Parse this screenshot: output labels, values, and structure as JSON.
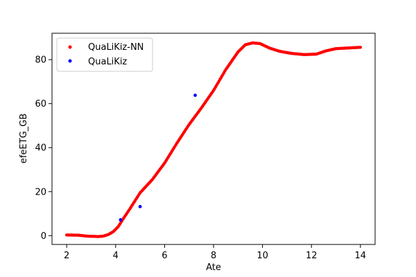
{
  "chart_data": {
    "type": "scatter",
    "title": "",
    "xlabel": "Ate",
    "ylabel": "efeETG_GB",
    "xlim": [
      1.4,
      14.6
    ],
    "ylim": [
      -4.0,
      92.0
    ],
    "xticks": [
      2,
      4,
      6,
      8,
      10,
      12,
      14
    ],
    "yticks": [
      0,
      20,
      40,
      60,
      80
    ],
    "grid": false,
    "legend": "top-left",
    "series": [
      {
        "name": "QuaLiKiz-NN",
        "color": "#ff0000",
        "marker": "dense-dots",
        "points": [
          [
            2.0,
            0.3
          ],
          [
            2.5,
            0.2
          ],
          [
            2.8,
            -0.2
          ],
          [
            3.0,
            -0.3
          ],
          [
            3.3,
            -0.4
          ],
          [
            3.5,
            -0.2
          ],
          [
            3.7,
            0.5
          ],
          [
            3.9,
            1.8
          ],
          [
            4.1,
            4.0
          ],
          [
            4.3,
            7.5
          ],
          [
            4.6,
            12.5
          ],
          [
            5.0,
            19.5
          ],
          [
            5.5,
            25.5
          ],
          [
            6.0,
            33.0
          ],
          [
            6.5,
            42.0
          ],
          [
            7.0,
            50.5
          ],
          [
            7.5,
            58.0
          ],
          [
            8.0,
            66.0
          ],
          [
            8.5,
            75.5
          ],
          [
            9.0,
            83.5
          ],
          [
            9.3,
            86.8
          ],
          [
            9.6,
            87.6
          ],
          [
            9.9,
            87.3
          ],
          [
            10.3,
            85.2
          ],
          [
            10.7,
            83.8
          ],
          [
            11.2,
            82.8
          ],
          [
            11.7,
            82.3
          ],
          [
            12.2,
            82.5
          ],
          [
            12.6,
            84.0
          ],
          [
            13.0,
            85.0
          ],
          [
            13.5,
            85.3
          ],
          [
            14.0,
            85.6
          ]
        ]
      },
      {
        "name": "QuaLiKiz",
        "color": "#0000ff",
        "marker": "dot",
        "points": [
          [
            4.2,
            7.2
          ],
          [
            5.0,
            13.2
          ],
          [
            7.25,
            63.8
          ]
        ]
      }
    ]
  }
}
